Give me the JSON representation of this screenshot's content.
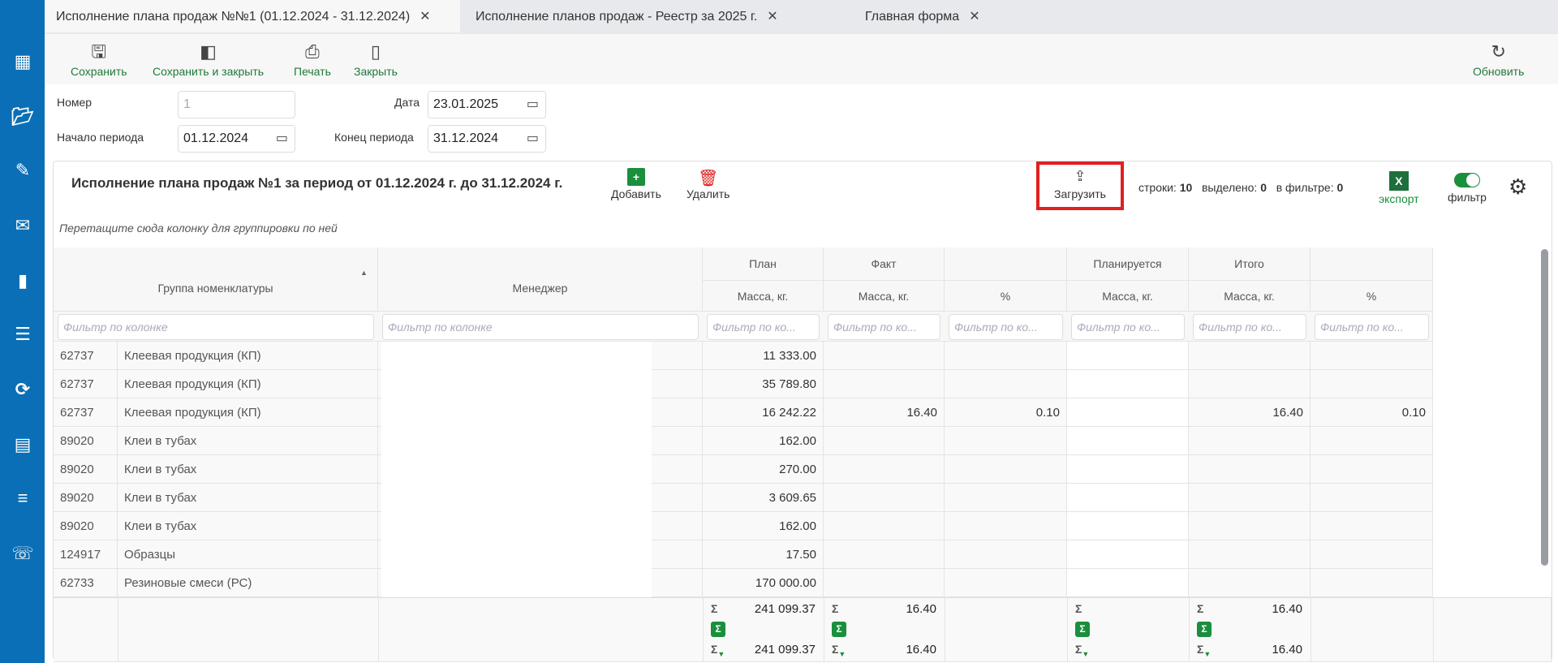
{
  "tabs": [
    {
      "label": "Исполнение плана продаж №№1 (01.12.2024 - 31.12.2024)",
      "active": true
    },
    {
      "label": "Исполнение планов продаж - Реестр за 2025 г."
    },
    {
      "label": "Главная форма"
    }
  ],
  "toolbar": {
    "save": "Сохранить",
    "save_close": "Сохранить и закрыть",
    "print": "Печать",
    "close": "Закрыть",
    "refresh": "Обновить"
  },
  "form": {
    "number_label": "Номер",
    "number_value": "1",
    "date_label": "Дата",
    "date_value": "23.01.2025",
    "start_label": "Начало периода",
    "start_value": "01.12.2024",
    "end_label": "Конец периода",
    "end_value": "31.12.2024"
  },
  "grid": {
    "title": "Исполнение плана продаж №1 за период от 01.12.2024 г. до 31.12.2024 г.",
    "add": "Добавить",
    "delete": "Удалить",
    "load": "Загрузить",
    "rows_label": "строки:",
    "rows": "10",
    "selected_label": "выделено:",
    "selected": "0",
    "filtered_label": "в фильтре:",
    "filtered": "0",
    "export": "экспорт",
    "filter": "фильтр",
    "filter_on": true,
    "group_hint": "Перетащите сюда колонку для группировки по ней",
    "bands": {
      "plan": "План",
      "fact": "Факт",
      "planned": "Планируется",
      "total": "Итого"
    },
    "columns": {
      "group": "Группа номенклатуры",
      "manager": "Менеджер",
      "plan_mass": "Масса, кг.",
      "fact_mass": "Масса, кг.",
      "fact_pct": "%",
      "planned_mass": "Масса, кг.",
      "total_mass": "Масса, кг.",
      "total_pct": "%"
    },
    "filter_placeholder": "Фильтр по колонке",
    "filter_placeholder_short": "Фильтр по ко...",
    "rows_data": [
      [
        "62737",
        "Клеевая продукция (КП)",
        "11 333.00",
        "",
        "",
        "",
        "",
        ""
      ],
      [
        "62737",
        "Клеевая продукция (КП)",
        "35 789.80",
        "",
        "",
        "",
        "",
        ""
      ],
      [
        "62737",
        "Клеевая продукция (КП)",
        "16 242.22",
        "16.40",
        "0.10",
        "",
        "16.40",
        "0.10"
      ],
      [
        "89020",
        "Клеи в тубах",
        "162.00",
        "",
        "",
        "",
        "",
        ""
      ],
      [
        "89020",
        "Клеи в тубах",
        "270.00",
        "",
        "",
        "",
        "",
        ""
      ],
      [
        "89020",
        "Клеи в тубах",
        "3 609.65",
        "",
        "",
        "",
        "",
        ""
      ],
      [
        "89020",
        "Клеи в тубах",
        "162.00",
        "",
        "",
        "",
        "",
        ""
      ],
      [
        "124917",
        "Образцы",
        "17.50",
        "",
        "",
        "",
        "",
        ""
      ],
      [
        "62733",
        "Резиновые смеси (РС)",
        "170 000.00",
        "",
        "",
        "",
        "",
        ""
      ]
    ],
    "totals": {
      "plan_sum": "241 099.37",
      "plan_fsum": "241 099.37",
      "fact_sum": "16.40",
      "fact_fsum": "16.40",
      "total_sum": "16.40",
      "total_fsum": "16.40"
    }
  },
  "colors": {
    "sidebar": "#0a6fb6",
    "accent": "#1a8f3c",
    "highlight": "#e02020"
  }
}
